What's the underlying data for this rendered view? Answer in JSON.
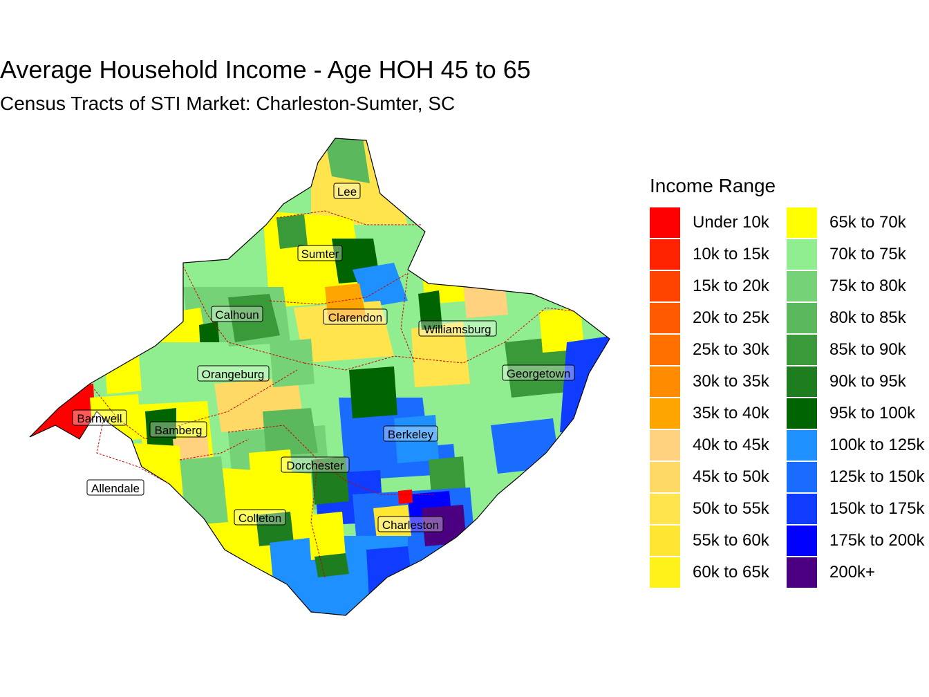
{
  "title": "Average Household Income - Age HOH 45 to 65",
  "subtitle": "Census Tracts of STI Market: Charleston-Sumter, SC",
  "legend": {
    "title": "Income Range",
    "items": [
      {
        "label": "Under 10k",
        "color": "#ff0000"
      },
      {
        "label": "10k to 15k",
        "color": "#ff2200"
      },
      {
        "label": "15k to 20k",
        "color": "#ff4400"
      },
      {
        "label": "20k to 25k",
        "color": "#ff5a00"
      },
      {
        "label": "25k to 30k",
        "color": "#ff7000"
      },
      {
        "label": "30k to 35k",
        "color": "#ff8c00"
      },
      {
        "label": "35k to 40k",
        "color": "#ffa500"
      },
      {
        "label": "40k to 45k",
        "color": "#ffd27f"
      },
      {
        "label": "45k to 50k",
        "color": "#ffd966"
      },
      {
        "label": "50k to 55k",
        "color": "#ffe44d"
      },
      {
        "label": "55k to 60k",
        "color": "#ffe633"
      },
      {
        "label": "60k to 65k",
        "color": "#fff21a"
      },
      {
        "label": "65k to 70k",
        "color": "#ffff00"
      },
      {
        "label": "70k to 75k",
        "color": "#90ee90"
      },
      {
        "label": "75k to 80k",
        "color": "#76d276"
      },
      {
        "label": "80k to 85k",
        "color": "#5cb85c"
      },
      {
        "label": "85k to 90k",
        "color": "#3a9a3a"
      },
      {
        "label": "90k to 95k",
        "color": "#1e7d1e"
      },
      {
        "label": "95k to 100k",
        "color": "#006400"
      },
      {
        "label": "100k to 125k",
        "color": "#1e90ff"
      },
      {
        "label": "125k to 150k",
        "color": "#1a6bff"
      },
      {
        "label": "150k to 175k",
        "color": "#0f3cff"
      },
      {
        "label": "175k to 200k",
        "color": "#0000ff"
      },
      {
        "label": "200k+",
        "color": "#4b0082"
      }
    ]
  },
  "counties": [
    "Lee",
    "Sumter",
    "Calhoun",
    "Clarendon",
    "Williamsburg",
    "Orangeburg",
    "Georgetown",
    "Barnwell",
    "Bamberg",
    "Berkeley",
    "Dorchester",
    "Allendale",
    "Colleton",
    "Charleston"
  ]
}
